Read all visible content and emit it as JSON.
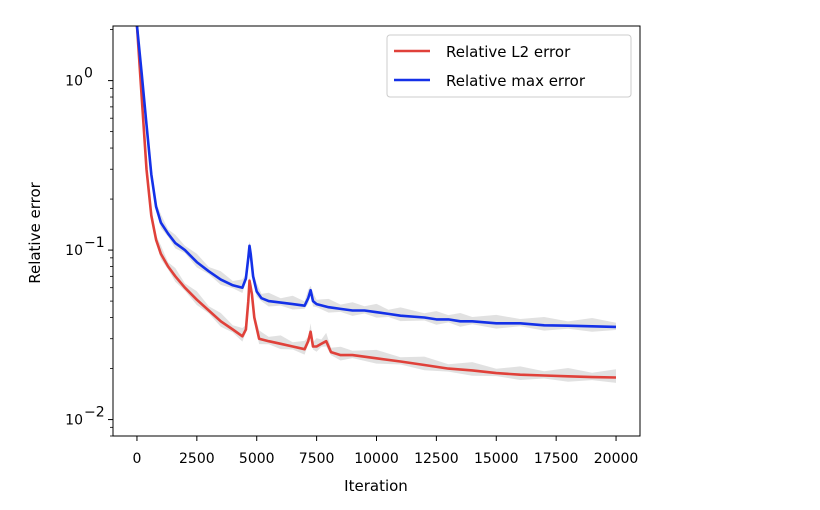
{
  "chart_data": {
    "type": "line",
    "title": "",
    "xlabel": "Iteration",
    "ylabel": "Relative error",
    "xscale": "linear",
    "yscale": "log",
    "xlim": [
      -1000,
      21000
    ],
    "ylim": [
      0.008,
      2.1
    ],
    "grid": false,
    "legend_position": "top-right",
    "x_ticks": [
      0,
      2500,
      5000,
      7500,
      10000,
      12500,
      15000,
      17500,
      20000
    ],
    "x_tick_labels": [
      "0",
      "2500",
      "5000",
      "7500",
      "10000",
      "12500",
      "15000",
      "17500",
      "20000"
    ],
    "y_ticks": [
      0.01,
      0.1,
      1
    ],
    "y_tick_labels": [
      {
        "base": "10",
        "exp": "−2"
      },
      {
        "base": "10",
        "exp": "−1"
      },
      {
        "base": "10",
        "exp": "0"
      }
    ],
    "series": [
      {
        "name": "Relative L2 error",
        "color": "#e0413a",
        "x": [
          0,
          200,
          400,
          600,
          800,
          1000,
          1300,
          1600,
          2000,
          2500,
          3000,
          3500,
          4000,
          4400,
          4550,
          4650,
          4700,
          4800,
          4900,
          5100,
          5500,
          6000,
          6500,
          7000,
          7150,
          7250,
          7350,
          7500,
          7700,
          7900,
          8100,
          8500,
          9000,
          10000,
          11000,
          12000,
          13000,
          14000,
          15000,
          16000,
          17000,
          18000,
          19000,
          20000
        ],
        "y": [
          2.1,
          0.8,
          0.3,
          0.16,
          0.115,
          0.095,
          0.08,
          0.07,
          0.06,
          0.051,
          0.044,
          0.038,
          0.034,
          0.031,
          0.034,
          0.05,
          0.066,
          0.055,
          0.04,
          0.03,
          0.029,
          0.028,
          0.027,
          0.026,
          0.029,
          0.033,
          0.027,
          0.027,
          0.028,
          0.029,
          0.025,
          0.024,
          0.024,
          0.023,
          0.022,
          0.021,
          0.02,
          0.0195,
          0.0188,
          0.0184,
          0.0182,
          0.018,
          0.0178,
          0.0177
        ]
      },
      {
        "name": "Relative max error",
        "color": "#1431e8",
        "x": [
          0,
          200,
          400,
          600,
          800,
          1000,
          1300,
          1600,
          2000,
          2500,
          3000,
          3500,
          4000,
          4400,
          4550,
          4650,
          4700,
          4750,
          4850,
          5000,
          5200,
          5500,
          6000,
          6500,
          7000,
          7150,
          7250,
          7350,
          7500,
          8000,
          8500,
          9000,
          9500,
          10000,
          10500,
          11000,
          12000,
          12500,
          13000,
          13500,
          14000,
          15000,
          16000,
          17000,
          18000,
          19000,
          20000
        ],
        "y": [
          2.1,
          1.1,
          0.55,
          0.28,
          0.18,
          0.145,
          0.125,
          0.11,
          0.1,
          0.085,
          0.075,
          0.067,
          0.062,
          0.06,
          0.068,
          0.09,
          0.106,
          0.095,
          0.07,
          0.057,
          0.052,
          0.05,
          0.049,
          0.048,
          0.047,
          0.052,
          0.058,
          0.05,
          0.048,
          0.046,
          0.045,
          0.044,
          0.044,
          0.043,
          0.042,
          0.041,
          0.04,
          0.039,
          0.039,
          0.038,
          0.038,
          0.037,
          0.037,
          0.036,
          0.0358,
          0.0355,
          0.0352
        ]
      }
    ]
  }
}
